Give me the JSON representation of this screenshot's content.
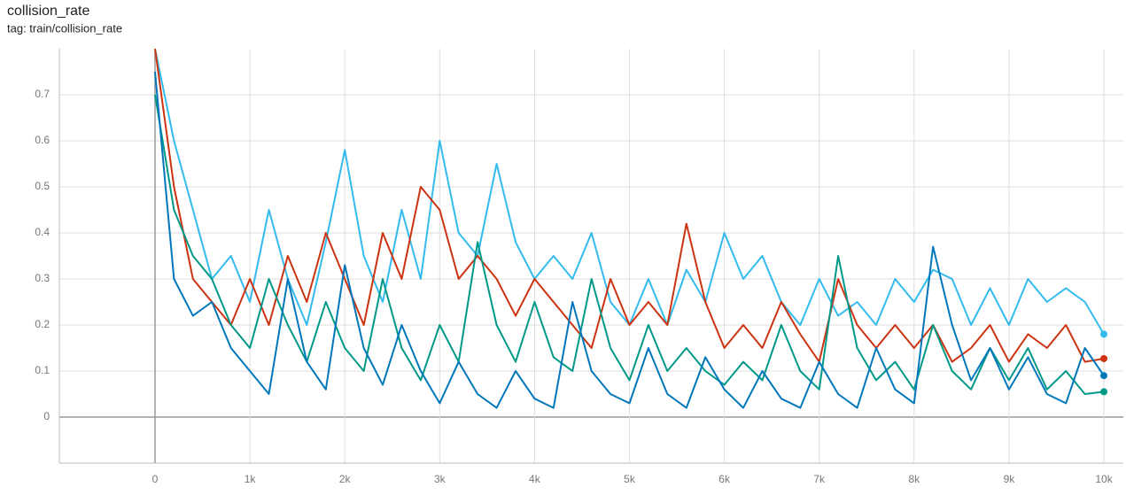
{
  "chart_data": {
    "type": "line",
    "title": "collision_rate",
    "subtitle": "tag: train/collision_rate",
    "x": [
      0,
      200,
      400,
      600,
      800,
      1000,
      1200,
      1400,
      1600,
      1800,
      2000,
      2200,
      2400,
      2600,
      2800,
      3000,
      3200,
      3400,
      3600,
      3800,
      4000,
      4200,
      4400,
      4600,
      4800,
      5000,
      5200,
      5400,
      5600,
      5800,
      6000,
      6200,
      6400,
      6600,
      6800,
      7000,
      7200,
      7400,
      7600,
      7800,
      8000,
      8200,
      8400,
      8600,
      8800,
      9000,
      9200,
      9400,
      9600,
      9800,
      10000
    ],
    "series": [
      {
        "color": "#33bbee",
        "values": [
          0.8,
          0.6,
          0.45,
          0.3,
          0.35,
          0.25,
          0.45,
          0.3,
          0.2,
          0.38,
          0.58,
          0.35,
          0.25,
          0.45,
          0.3,
          0.6,
          0.4,
          0.35,
          0.55,
          0.38,
          0.3,
          0.35,
          0.3,
          0.4,
          0.25,
          0.2,
          0.3,
          0.2,
          0.32,
          0.25,
          0.4,
          0.3,
          0.35,
          0.25,
          0.2,
          0.3,
          0.22,
          0.25,
          0.2,
          0.3,
          0.25,
          0.32,
          0.3,
          0.2,
          0.28,
          0.2,
          0.3,
          0.25,
          0.28,
          0.25,
          0.18
        ]
      },
      {
        "color": "#cc3311",
        "values": [
          0.8,
          0.5,
          0.3,
          0.25,
          0.2,
          0.3,
          0.2,
          0.35,
          0.25,
          0.4,
          0.3,
          0.2,
          0.4,
          0.3,
          0.5,
          0.45,
          0.3,
          0.35,
          0.3,
          0.22,
          0.3,
          0.25,
          0.2,
          0.15,
          0.3,
          0.2,
          0.25,
          0.2,
          0.42,
          0.25,
          0.15,
          0.2,
          0.15,
          0.25,
          0.18,
          0.12,
          0.3,
          0.2,
          0.15,
          0.2,
          0.15,
          0.2,
          0.12,
          0.15,
          0.2,
          0.12,
          0.18,
          0.15,
          0.2,
          0.12,
          0.127
        ]
      },
      {
        "color": "#009988",
        "values": [
          0.7,
          0.45,
          0.35,
          0.3,
          0.2,
          0.15,
          0.3,
          0.2,
          0.12,
          0.25,
          0.15,
          0.1,
          0.3,
          0.15,
          0.08,
          0.2,
          0.12,
          0.38,
          0.2,
          0.12,
          0.25,
          0.13,
          0.1,
          0.3,
          0.15,
          0.08,
          0.2,
          0.1,
          0.15,
          0.1,
          0.07,
          0.12,
          0.08,
          0.2,
          0.1,
          0.06,
          0.35,
          0.15,
          0.08,
          0.12,
          0.06,
          0.2,
          0.1,
          0.06,
          0.15,
          0.08,
          0.15,
          0.06,
          0.1,
          0.05,
          0.055
        ]
      },
      {
        "color": "#0077bb",
        "values": [
          0.75,
          0.3,
          0.22,
          0.25,
          0.15,
          0.1,
          0.05,
          0.3,
          0.12,
          0.06,
          0.33,
          0.15,
          0.07,
          0.2,
          0.1,
          0.03,
          0.12,
          0.05,
          0.02,
          0.1,
          0.04,
          0.02,
          0.25,
          0.1,
          0.05,
          0.03,
          0.15,
          0.05,
          0.02,
          0.13,
          0.06,
          0.02,
          0.1,
          0.04,
          0.02,
          0.12,
          0.05,
          0.02,
          0.15,
          0.06,
          0.03,
          0.37,
          0.2,
          0.08,
          0.15,
          0.06,
          0.13,
          0.05,
          0.03,
          0.15,
          0.09
        ]
      }
    ],
    "xlim": [
      -1008,
      10205
    ],
    "ylim": [
      -0.1,
      0.8
    ],
    "xticks": [
      0,
      {
        "value": 1000,
        "label": "1k"
      },
      {
        "value": 2000,
        "label": "2k"
      },
      {
        "value": 3000,
        "label": "3k"
      },
      {
        "value": 4000,
        "label": "4k"
      },
      {
        "value": 5000,
        "label": "5k"
      },
      {
        "value": 6000,
        "label": "6k"
      },
      {
        "value": 7000,
        "label": "7k"
      },
      {
        "value": 8000,
        "label": "8k"
      },
      {
        "value": 9000,
        "label": "9k"
      },
      {
        "value": 10000,
        "label": "10k"
      }
    ],
    "yticks": [
      0,
      0.1,
      0.2,
      0.3,
      0.4,
      0.5,
      0.6,
      0.7
    ],
    "grid": true
  }
}
